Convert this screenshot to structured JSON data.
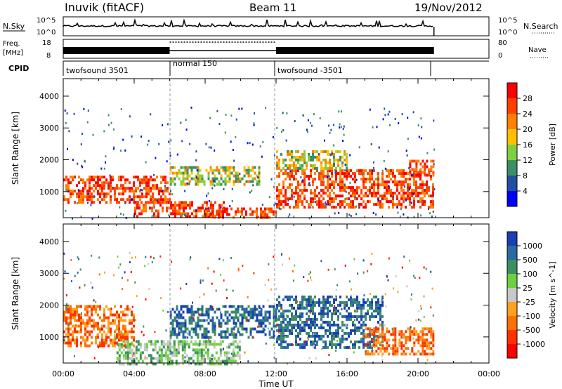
{
  "header": {
    "site": "Inuvik (fitACF)",
    "beam": "Beam 11",
    "date": "19/Nov/2012"
  },
  "top_panels": {
    "nsky_label": "N.Sky",
    "nsearch_label": "N.Search",
    "nsky_ticks": [
      "10^5",
      "10^0"
    ],
    "nsearch_ticks": [
      "10^5",
      "10^0"
    ],
    "freq_label": "Freq.",
    "freq_unit": "[MHz]",
    "freq_ticks": [
      "18",
      "8"
    ],
    "nave_label": "Nave",
    "nave_ticks": [
      "80",
      "0"
    ],
    "cpid_label": "CPID",
    "cpid_segments": [
      {
        "label": "twofsound 3501",
        "start_hour": 0,
        "end_hour": 6
      },
      {
        "label": "normal 150",
        "start_hour": 6,
        "end_hour": 12
      },
      {
        "label": "twofsound -3501",
        "start_hour": 12,
        "end_hour": 20.9
      }
    ]
  },
  "axes": {
    "xlabel": "Time UT",
    "x_ticks": [
      "00:00",
      "04:00",
      "08:00",
      "12:00",
      "16:00",
      "20:00",
      "00:00"
    ],
    "ylabel": "Slant Range [km]",
    "y_ticks": [
      "1000",
      "2000",
      "3000",
      "4000"
    ]
  },
  "power_colorbar": {
    "label": "Power [dB]",
    "ticks": [
      "28",
      "24",
      "20",
      "16",
      "12",
      "8",
      "4"
    ],
    "colors": [
      "#ff0000",
      "#ff4000",
      "#ff8000",
      "#ffc000",
      "#7fd040",
      "#3a9060",
      "#2050a0",
      "#0000ff"
    ]
  },
  "velocity_colorbar": {
    "label": "Velocity [m s^-1]",
    "ticks": [
      "1000",
      "500",
      "100",
      "25",
      "-25",
      "-100",
      "-500",
      "-1000"
    ],
    "colors": [
      "#1a3fb0",
      "#2a6aa0",
      "#3a9060",
      "#6ed040",
      "#c8c8c8",
      "#ffa020",
      "#ff7000",
      "#ff3000",
      "#ff0000"
    ]
  },
  "chart_data": {
    "type": "heatmap",
    "x_range_hours": [
      0,
      24
    ],
    "y_range_km": [
      180,
      4550
    ],
    "data_end_hour": 20.9,
    "power_bands": [
      {
        "t0": 0,
        "t1": 6,
        "r0": 700,
        "r1": 1500,
        "level": "high"
      },
      {
        "t0": 4,
        "t1": 9,
        "r0": 180,
        "r1": 700,
        "level": "high"
      },
      {
        "t0": 8,
        "t1": 12,
        "r0": 180,
        "r1": 500,
        "level": "high"
      },
      {
        "t0": 6,
        "t1": 11,
        "r0": 1200,
        "r1": 1800,
        "level": "medium"
      },
      {
        "t0": 12,
        "t1": 20.9,
        "r0": 500,
        "r1": 1700,
        "level": "high"
      },
      {
        "t0": 12,
        "t1": 16,
        "r0": 1700,
        "r1": 2300,
        "level": "medium"
      },
      {
        "t0": 19.5,
        "t1": 20.9,
        "r0": 1500,
        "r1": 2000,
        "level": "high"
      }
    ],
    "velocity_bands": [
      {
        "t0": 0,
        "t1": 4,
        "r0": 700,
        "r1": 2000,
        "sign": "negative"
      },
      {
        "t0": 3,
        "t1": 10,
        "r0": 180,
        "r1": 900,
        "sign": "near-zero"
      },
      {
        "t0": 6,
        "t1": 12,
        "r0": 1000,
        "r1": 2000,
        "sign": "positive"
      },
      {
        "t0": 12,
        "t1": 18,
        "r0": 700,
        "r1": 2300,
        "sign": "positive"
      },
      {
        "t0": 17,
        "t1": 20.9,
        "r0": 500,
        "r1": 1300,
        "sign": "negative"
      }
    ]
  }
}
